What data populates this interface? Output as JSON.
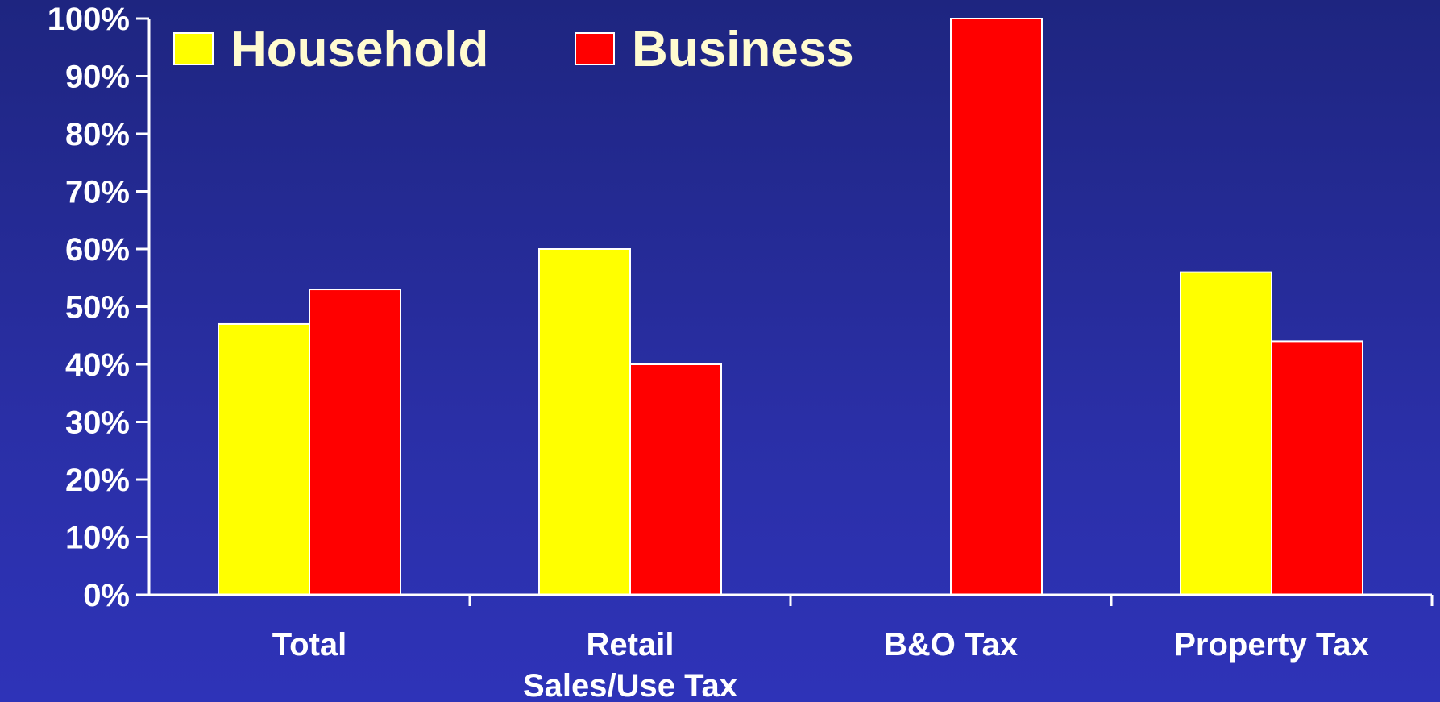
{
  "chart_data": {
    "type": "bar",
    "title": "",
    "xlabel": "",
    "ylabel": "",
    "categories": [
      [
        "Total"
      ],
      [
        "Retail",
        "Sales/Use Tax"
      ],
      [
        "B&O Tax"
      ],
      [
        "Property Tax"
      ]
    ],
    "series": [
      {
        "name": "Household",
        "values": [
          47,
          60,
          0,
          56
        ],
        "color": "#ffff00"
      },
      {
        "name": "Business",
        "values": [
          53,
          40,
          100,
          44
        ],
        "color": "#ff0000"
      }
    ],
    "ylim": [
      0,
      100
    ],
    "yticks": [
      0,
      10,
      20,
      30,
      40,
      50,
      60,
      70,
      80,
      90,
      100
    ],
    "ytick_suffix": "%",
    "grid": false,
    "legend_position": "top-left",
    "colors": {
      "axis": "#ffffff",
      "bar_edge": "#ffffff",
      "background_top": "#1e2580",
      "background_bottom": "#2e33b8"
    }
  }
}
